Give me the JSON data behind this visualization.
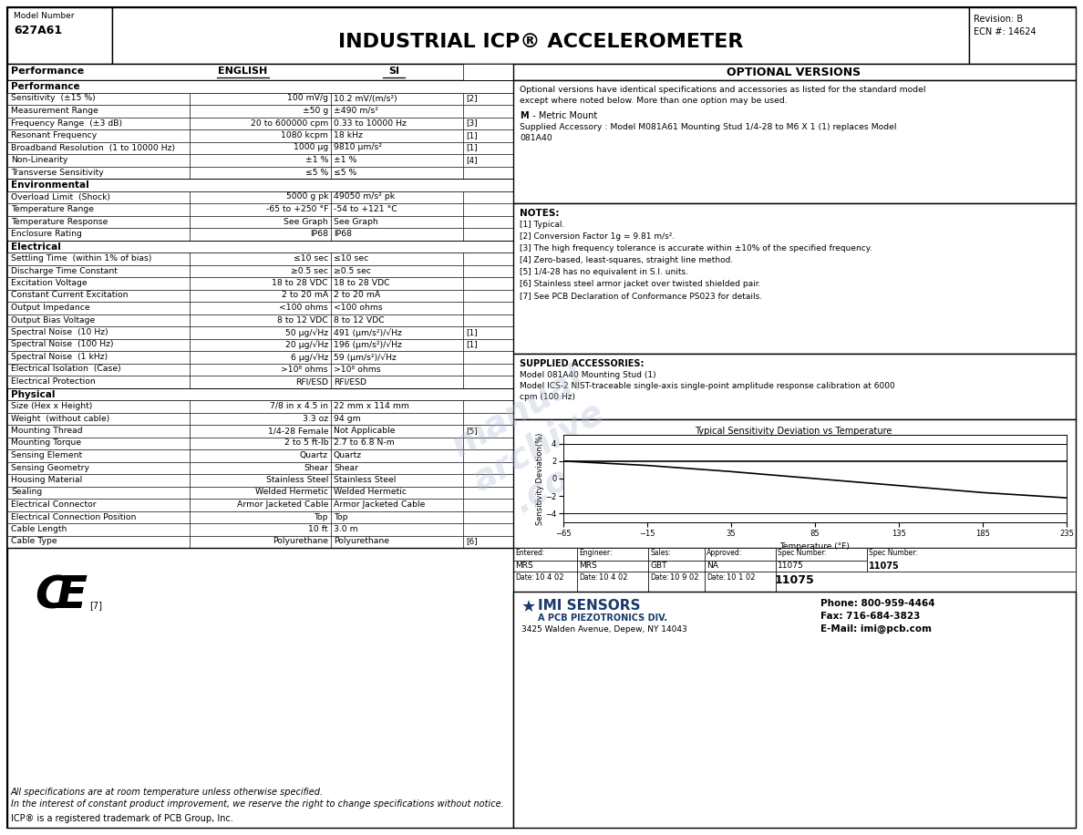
{
  "title": "INDUSTRIAL ICP® ACCELEROMETER",
  "model_number_label": "Model Number",
  "model_number": "627A61",
  "revision": "Revision: B",
  "ecn": "ECN #: 14624",
  "optional_versions_header": "OPTIONAL VERSIONS",
  "optional_versions_text1": "Optional versions have identical specifications and accessories as listed for the standard model",
  "optional_versions_text2": "except where noted below. More than one option may be used.",
  "metric_mount_bold": "M",
  "metric_mount_rest": "  - Metric Mount",
  "metric_mount_detail1": "Supplied Accessory : Model M081A61 Mounting Stud 1/4-28 to M6 X 1 (1) replaces Model",
  "metric_mount_detail2": "081A40",
  "notes_header": "NOTES:",
  "notes": [
    "[1] Typical.",
    "[2] Conversion Factor 1g = 9.81 m/s².",
    "[3] The high frequency tolerance is accurate within ±10% of the specified frequency.",
    "[4] Zero-based, least-squares, straight line method.",
    "[5] 1/4-28 has no equivalent in S.I. units.",
    "[6] Stainless steel armor jacket over twisted shielded pair.",
    "[7] See PCB Declaration of Conformance PS023 for details."
  ],
  "supplied_accessories_header": "SUPPLIED ACCESSORIES:",
  "supplied_accessories_lines": [
    "Model 081A40 Mounting Stud (1)",
    "Model ICS-2 NIST-traceable single-axis single-point amplitude response calibration at 6000",
    "cpm (100 Hz)"
  ],
  "specs": [
    [
      "Performance",
      "",
      "",
      false
    ],
    [
      "Sensitivity  (±15 %)",
      "100 mV/g",
      "10.2 mV/(m/s²)",
      "[2]"
    ],
    [
      "Measurement Range",
      "±50 g",
      "±490 m/s²",
      ""
    ],
    [
      "Frequency Range  (±3 dB)",
      "20 to 600000 cpm",
      "0.33 to 10000 Hz",
      "[3]"
    ],
    [
      "Resonant Frequency",
      "1080 kcpm",
      "18 kHz",
      "[1]"
    ],
    [
      "Broadband Resolution  (1 to 10000 Hz)",
      "1000 μg",
      "9810 μm/s²",
      "[1]"
    ],
    [
      "Non-Linearity",
      "±1 %",
      "±1 %",
      "[4]"
    ],
    [
      "Transverse Sensitivity",
      "≤5 %",
      "≤5 %",
      ""
    ],
    [
      "Environmental",
      "",
      "",
      false
    ],
    [
      "Overload Limit  (Shock)",
      "5000 g pk",
      "49050 m/s² pk",
      ""
    ],
    [
      "Temperature Range",
      "-65 to +250 °F",
      "-54 to +121 °C",
      ""
    ],
    [
      "Temperature Response",
      "See Graph",
      "See Graph",
      ""
    ],
    [
      "Enclosure Rating",
      "IP68",
      "IP68",
      ""
    ],
    [
      "Electrical",
      "",
      "",
      false
    ],
    [
      "Settling Time  (within 1% of bias)",
      "≤10 sec",
      "≤10 sec",
      ""
    ],
    [
      "Discharge Time Constant",
      "≥0.5 sec",
      "≥0.5 sec",
      ""
    ],
    [
      "Excitation Voltage",
      "18 to 28 VDC",
      "18 to 28 VDC",
      ""
    ],
    [
      "Constant Current Excitation",
      "2 to 20 mA",
      "2 to 20 mA",
      ""
    ],
    [
      "Output Impedance",
      "<100 ohms",
      "<100 ohms",
      ""
    ],
    [
      "Output Bias Voltage",
      "8 to 12 VDC",
      "8 to 12 VDC",
      ""
    ],
    [
      "Spectral Noise  (10 Hz)",
      "50 μg/√Hz",
      "491 (μm/s²)/√Hz",
      "[1]"
    ],
    [
      "Spectral Noise  (100 Hz)",
      "20 μg/√Hz",
      "196 (μm/s²)/√Hz",
      "[1]"
    ],
    [
      "Spectral Noise  (1 kHz)",
      "6 μg/√Hz",
      "59 (μm/s²)/√Hz",
      ""
    ],
    [
      "Electrical Isolation  (Case)",
      ">10⁸ ohms",
      ">10⁸ ohms",
      ""
    ],
    [
      "Electrical Protection",
      "RFI/ESD",
      "RFI/ESD",
      ""
    ],
    [
      "Physical",
      "",
      "",
      false
    ],
    [
      "Size (Hex x Height)",
      "7/8 in x 4.5 in",
      "22 mm x 114 mm",
      ""
    ],
    [
      "Weight  (without cable)",
      "3.3 oz",
      "94 gm",
      ""
    ],
    [
      "Mounting Thread",
      "1/4-28 Female",
      "Not Applicable",
      "[5]"
    ],
    [
      "Mounting Torque",
      "2 to 5 ft-lb",
      "2.7 to 6.8 N-m",
      ""
    ],
    [
      "Sensing Element",
      "Quartz",
      "Quartz",
      ""
    ],
    [
      "Sensing Geometry",
      "Shear",
      "Shear",
      ""
    ],
    [
      "Housing Material",
      "Stainless Steel",
      "Stainless Steel",
      ""
    ],
    [
      "Sealing",
      "Welded Hermetic",
      "Welded Hermetic",
      ""
    ],
    [
      "Electrical Connector",
      "Armor Jacketed Cable",
      "Armor Jacketed Cable",
      ""
    ],
    [
      "Electrical Connection Position",
      "Top",
      "Top",
      ""
    ],
    [
      "Cable Length",
      "10 ft",
      "3.0 m",
      ""
    ],
    [
      "Cable Type",
      "Polyurethane",
      "Polyurethane",
      "[6]"
    ]
  ],
  "section_headers": [
    "Performance",
    "Environmental",
    "Electrical",
    "Physical"
  ],
  "graph_title": "Typical Sensitivity Deviation vs Temperature",
  "graph_xlabel": "Temperature (°F)",
  "graph_ylabel": "Sensitivity Deviation(%)",
  "graph_x": [
    -65,
    -15,
    35,
    85,
    135,
    185,
    235
  ],
  "graph_upper_y": [
    2.0,
    2.0,
    2.0,
    2.0,
    2.0,
    2.0,
    2.0
  ],
  "graph_lower_y": [
    2.0,
    1.5,
    0.8,
    0.0,
    -0.8,
    -1.6,
    -2.2
  ],
  "graph_yticks": [
    -4,
    -2,
    0,
    2,
    4
  ],
  "graph_xticks": [
    -65,
    -15,
    35,
    85,
    135,
    185,
    235
  ],
  "entered_val": "MRS",
  "engineer_val": "MRS",
  "sales_val": "GBT",
  "approved_val": "NA",
  "spec_number_val": "11075",
  "date1_val": "10 4 02",
  "date2_val": "10 4 02",
  "date3_val": "10 9 02",
  "date4_val": "10 1 02",
  "footer_line1": "All specifications are at room temperature unless otherwise specified.",
  "footer_line2": "In the interest of constant product improvement, we reserve the right to change specifications without notice.",
  "footer_line3": "ICP® is a registered trademark of PCB Group, Inc.",
  "company_name": "IMI SENSORS",
  "company_sub": "A PCB PIEZOTRONICS DIV.",
  "company_address": "3425 Walden Avenue, Depew, NY 14043",
  "phone": "Phone: 800-959-4464",
  "fax": "Fax: 716-684-3823",
  "email": "E-Mail: imi@pcb.com",
  "bg_color": "#ffffff",
  "watermark_color": "#b0bcd8",
  "watermark_alpha": 0.35
}
